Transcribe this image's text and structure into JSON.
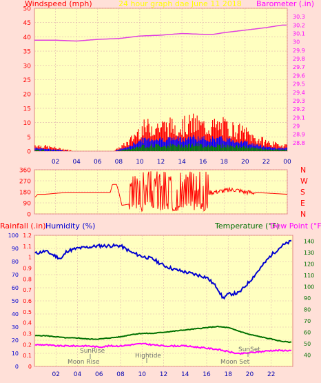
{
  "header": {
    "wind_title": "Windspeed (mph)",
    "graph_title": "24 hour graph dae   June 11 2018",
    "baro_title": "Barometer (.in)"
  },
  "compass_labels": [
    "N",
    "W",
    "S",
    "E",
    "N"
  ],
  "bottom_header": {
    "rain_title": "Rainfall (.in)",
    "hum_title": "Humidity (%)",
    "temp_title": "Temperature (°F)",
    "dew_title": "Dew Point (°F)"
  },
  "annotations": {
    "sunrise": "SunRise",
    "moonrise": "Moon Rise",
    "hightide": "Hightide",
    "sunset": "SunSet",
    "moonset": "Moon Set"
  },
  "colors": {
    "background": "#ffe0d8",
    "plot_area": "#ffffc0",
    "wind_gust": "#ff0000",
    "wind_avg": "#0000ff",
    "wind_low": "#008000",
    "barometer": "#e040e0",
    "direction": "#ff0000",
    "humidity": "#0000d0",
    "temperature": "#007000",
    "dew_point": "#ff00ff",
    "title_yellow": "#ffff00"
  },
  "chart_data": [
    {
      "type": "line",
      "title": "24 hour graph dae   June 11 2018",
      "x_ticks": [
        "02",
        "04",
        "06",
        "08",
        "10",
        "12",
        "14",
        "16",
        "18",
        "20",
        "22",
        "00"
      ],
      "y_left_label": "Windspeed (mph)",
      "y_left_range": [
        0,
        50
      ],
      "y_left_ticks": [
        "0",
        "5",
        "10",
        "15",
        "20",
        "25",
        "30",
        "35",
        "40",
        "45",
        "50"
      ],
      "y_right_label": "Barometer (.in)",
      "y_right_range": [
        28.7,
        30.4
      ],
      "y_right_ticks": [
        "28.8",
        "28.9",
        "29",
        "29.1",
        "29.2",
        "29.3",
        "29.4",
        "29.5",
        "29.6",
        "29.7",
        "29.8",
        "29.9",
        "30",
        "30.1",
        "30.2",
        "30.3"
      ],
      "grid": true,
      "series": [
        {
          "name": "Windspeed (mph)",
          "x": [
            0,
            2,
            4,
            6,
            7.5,
            8,
            9,
            10,
            11,
            12,
            13,
            14,
            15,
            16,
            17,
            18,
            19,
            20,
            21,
            22,
            23,
            24
          ],
          "values": [
            2,
            1,
            0,
            0,
            0,
            1,
            3,
            7,
            8,
            8,
            8,
            8,
            9,
            8,
            8,
            8,
            7,
            6,
            4,
            3,
            2,
            2
          ]
        },
        {
          "name": "Barometer (.in)",
          "x": [
            0,
            2,
            4,
            6,
            8,
            10,
            12,
            14,
            16,
            17,
            18,
            20,
            22,
            23.5,
            24
          ],
          "values": [
            30.02,
            30.02,
            30.01,
            30.03,
            30.04,
            30.07,
            30.08,
            30.1,
            30.09,
            30.09,
            30.11,
            30.14,
            30.17,
            30.2,
            30.2
          ]
        }
      ]
    },
    {
      "type": "line",
      "x_ticks": [
        "02",
        "04",
        "06",
        "08",
        "10",
        "12",
        "14",
        "16",
        "18",
        "20",
        "22",
        "00"
      ],
      "y_left_range": [
        0,
        360
      ],
      "y_left_ticks": [
        "0",
        "90",
        "180",
        "270",
        "360"
      ],
      "y_right_labels": [
        "N",
        "W",
        "S",
        "E",
        "N"
      ],
      "grid": true,
      "series": [
        {
          "name": "Wind direction",
          "x": [
            0,
            0.3,
            1,
            3,
            6,
            7.2,
            7.4,
            7.8,
            8,
            8.3,
            9,
            10,
            11,
            12,
            13,
            14,
            15,
            16,
            17,
            18,
            19,
            20,
            22,
            24
          ],
          "values": [
            130,
            160,
            160,
            175,
            175,
            175,
            240,
            240,
            180,
            70,
            80,
            150,
            180,
            120,
            200,
            170,
            140,
            170,
            180,
            190,
            200,
            180,
            170,
            160
          ]
        }
      ]
    },
    {
      "type": "line",
      "x_ticks": [
        "02",
        "04",
        "06",
        "08",
        "10",
        "12",
        "14",
        "16",
        "18",
        "20",
        "22"
      ],
      "y_left_label": "Humidity (%)",
      "y_left_range": [
        0,
        100
      ],
      "y_left_ticks": [
        "0",
        "10",
        "20",
        "30",
        "40",
        "50",
        "60",
        "70",
        "80",
        "90",
        "100"
      ],
      "y_rain_label": "Rainfall (.in)",
      "y_rain_range": [
        0,
        1.2
      ],
      "y_rain_ticks": [
        "0",
        "0.1",
        "0.2",
        "0.3",
        "0.4",
        "0.5",
        "0.6",
        "0.7",
        "0.8",
        "0.9",
        "1",
        "1.1",
        "1.2"
      ],
      "y_right_label": "Temperature (°F)",
      "y_right_range": [
        30,
        145
      ],
      "y_right_ticks": [
        "40",
        "50",
        "60",
        "70",
        "80",
        "90",
        "100",
        "110",
        "120",
        "130",
        "140"
      ],
      "grid": true,
      "series": [
        {
          "name": "Humidity (%)",
          "x": [
            0,
            1,
            2.5,
            3,
            4,
            5,
            6,
            7,
            8,
            9,
            10,
            11,
            12,
            13,
            14,
            15,
            16,
            17,
            17.5,
            18,
            19,
            20,
            21,
            22,
            23,
            24
          ],
          "values": [
            86,
            88,
            82,
            88,
            90,
            91,
            92,
            92,
            92,
            87,
            84,
            82,
            77,
            74,
            72,
            70,
            68,
            60,
            52,
            55,
            56,
            65,
            75,
            85,
            92,
            96
          ]
        },
        {
          "name": "Temperature (°F)",
          "x": [
            0,
            1,
            2,
            3,
            4,
            5,
            6,
            7,
            8,
            9,
            10,
            11,
            12,
            13,
            14,
            15,
            16,
            17,
            18,
            19,
            20,
            21,
            22,
            23,
            24
          ],
          "values": [
            57,
            57,
            56,
            55,
            55,
            54,
            54,
            55,
            56,
            58,
            59,
            59,
            60,
            61,
            62,
            63,
            64,
            65,
            64,
            61,
            58,
            56,
            54,
            52,
            51
          ]
        },
        {
          "name": "Dew Point (°F)",
          "x": [
            0,
            1,
            2,
            3,
            4,
            5,
            6,
            7,
            8,
            9,
            10,
            11,
            12,
            13,
            14,
            15,
            16,
            17,
            18,
            19,
            20,
            21,
            22,
            23,
            24
          ],
          "values": [
            49,
            49,
            48,
            48,
            48,
            48,
            47,
            48,
            48,
            49,
            50,
            49,
            48,
            48,
            48,
            47,
            46,
            45,
            43,
            41,
            42,
            43,
            44,
            44,
            44
          ]
        }
      ]
    }
  ]
}
